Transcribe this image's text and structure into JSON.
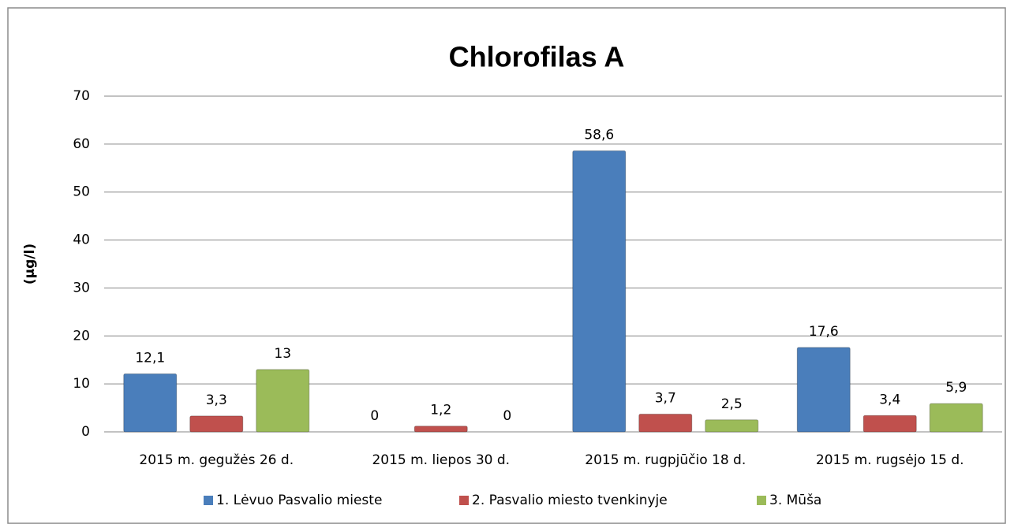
{
  "chart_data": {
    "type": "bar",
    "title": "Chlorofilas A",
    "y_label": "(µg/l)",
    "categories": [
      "2015 m. gegužės 26 d.",
      "2015 m. liepos 30 d.",
      "2015 m. rugpjūčio 18 d.",
      "2015 m. rugsėjo 15 d."
    ],
    "series": [
      {
        "name": "1. Lėvuo Pasvalio mieste",
        "color": "#4a7ebb",
        "values": [
          12.1,
          0,
          58.6,
          17.6
        ],
        "value_labels": [
          "12,1",
          "0",
          "58,6",
          "17,6"
        ]
      },
      {
        "name": "2. Pasvalio miesto tvenkinyje",
        "color": "#c0504d",
        "values": [
          3.3,
          1.2,
          3.7,
          3.4
        ],
        "value_labels": [
          "3,3",
          "1,2",
          "3,7",
          "3,4"
        ]
      },
      {
        "name": "3. Mūša",
        "color": "#9bbb59",
        "values": [
          13,
          0,
          2.5,
          5.9
        ],
        "value_labels": [
          "13",
          "0",
          "2,5",
          "5,9"
        ]
      }
    ],
    "ylim": [
      0,
      70
    ],
    "yticks": [
      0,
      10,
      20,
      30,
      40,
      50,
      60,
      70
    ],
    "grid": true,
    "legend": "bottom"
  }
}
